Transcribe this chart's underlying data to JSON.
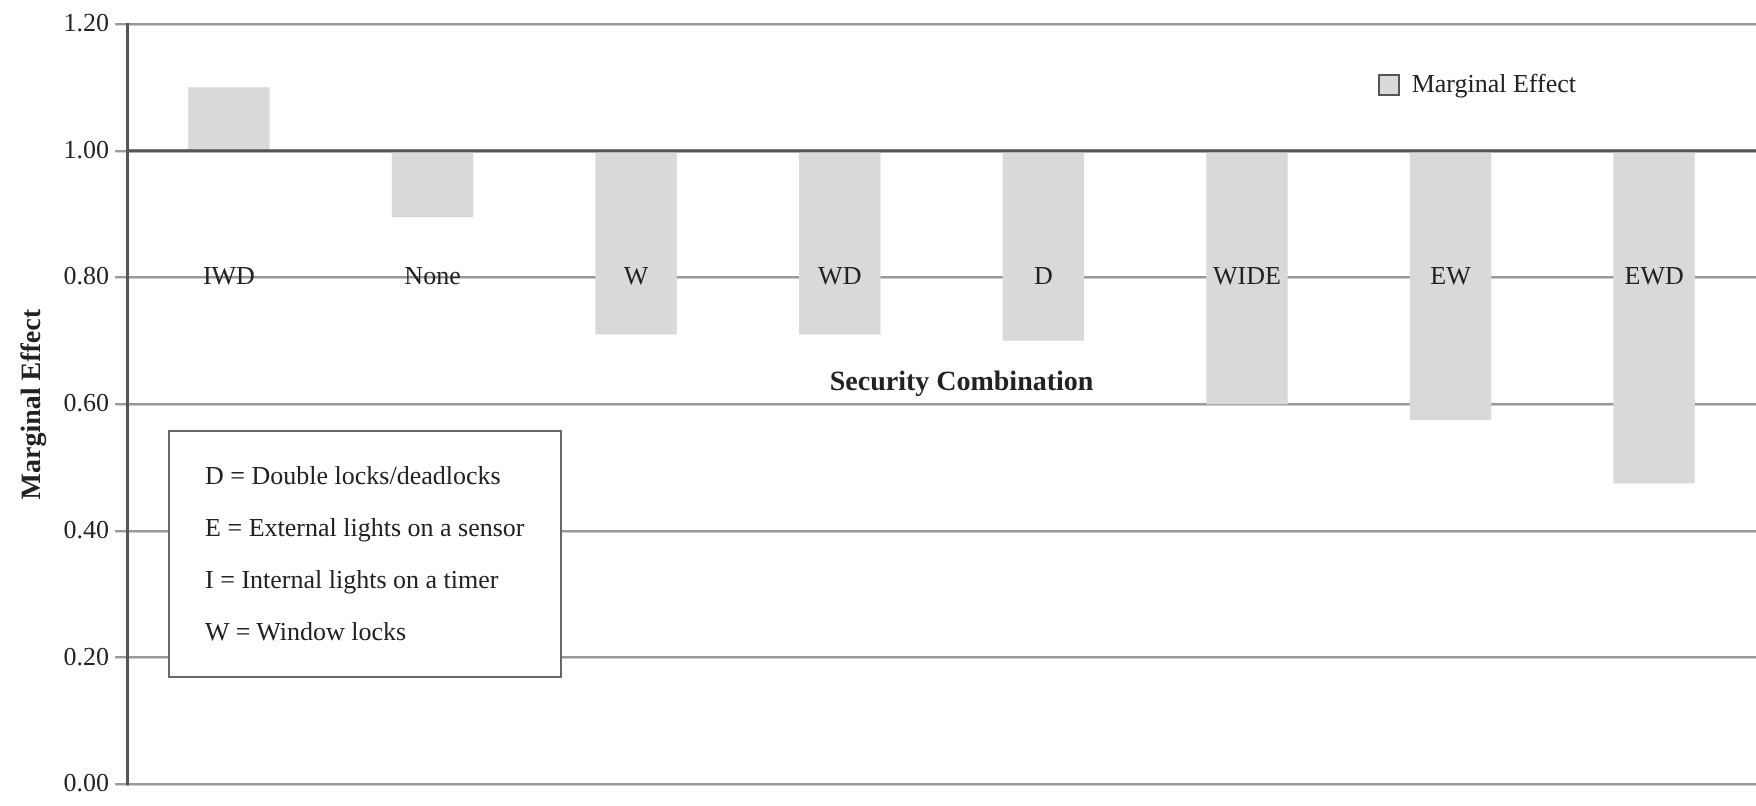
{
  "chart_data": {
    "type": "bar",
    "xlabel": "Security Combination",
    "ylabel": "Marginal Effect",
    "categories": [
      "IWD",
      "None",
      "W",
      "WD",
      "D",
      "WIDE",
      "EW",
      "EWD"
    ],
    "series": [
      {
        "name": "Marginal Effect",
        "color": "#d9d9d9",
        "base": [
          1,
          1,
          1,
          1,
          1,
          1,
          1,
          1
        ],
        "values": [
          0.1,
          -0.105,
          -0.29,
          -0.29,
          -0.3,
          -0.4,
          -0.425,
          -0.525
        ]
      }
    ],
    "ylim": [
      0,
      1.2
    ],
    "yticks": [
      {
        "value": 0,
        "label": "0.00"
      },
      {
        "value": 0.2,
        "label": "0.20"
      },
      {
        "value": 0.4,
        "label": "0.40"
      },
      {
        "value": 0.6,
        "label": "0.60"
      },
      {
        "value": 0.8,
        "label": "0.80"
      },
      {
        "value": 1,
        "label": "1.00"
      },
      {
        "value": 1.2,
        "label": "1.20"
      }
    ],
    "ref_lines": [
      {
        "axis": "y",
        "value": 1,
        "color": "#555555"
      }
    ],
    "grid": "y",
    "legend": "top right",
    "annotations": [
      "D = Double locks/deadlocks",
      "E = External lights on a sensor",
      "I = Internal lights on a timer",
      "W = Window locks"
    ]
  }
}
